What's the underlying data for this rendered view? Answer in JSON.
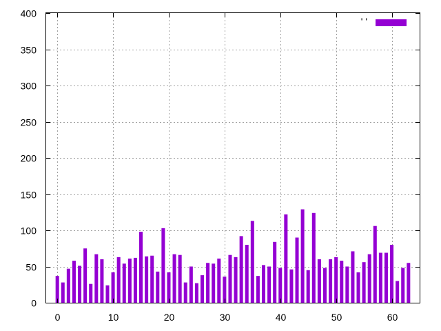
{
  "chart_data": {
    "type": "bar",
    "title": "",
    "xlabel": "",
    "ylabel": "",
    "x": [
      0,
      1,
      2,
      3,
      4,
      5,
      6,
      7,
      8,
      9,
      10,
      11,
      12,
      13,
      14,
      15,
      16,
      17,
      18,
      19,
      20,
      21,
      22,
      23,
      24,
      25,
      26,
      27,
      28,
      29,
      30,
      31,
      32,
      33,
      34,
      35,
      36,
      37,
      38,
      39,
      40,
      41,
      42,
      43,
      44,
      45,
      46,
      47,
      48,
      49,
      50,
      51,
      52,
      53,
      54,
      55,
      56,
      57,
      58,
      59,
      60,
      61,
      62,
      63
    ],
    "series": [
      {
        "name": "' '",
        "color": "#9400d3",
        "values": [
          37,
          28,
          47,
          58,
          51,
          75,
          26,
          67,
          60,
          24,
          42,
          63,
          54,
          61,
          62,
          98,
          64,
          65,
          43,
          103,
          42,
          67,
          66,
          28,
          50,
          27,
          38,
          55,
          54,
          61,
          36,
          66,
          63,
          92,
          80,
          113,
          37,
          52,
          50,
          84,
          48,
          122,
          46,
          90,
          129,
          45,
          124,
          60,
          48,
          60,
          63,
          58,
          50,
          71,
          42,
          56,
          67,
          106,
          69,
          69,
          80,
          30,
          48,
          55
        ]
      }
    ],
    "ylim": [
      0,
      400
    ],
    "xlim": [
      -2,
      65
    ],
    "yticks": [
      0,
      50,
      100,
      150,
      200,
      250,
      300,
      350,
      400
    ],
    "xticks": [
      0,
      10,
      20,
      30,
      40,
      50,
      60
    ],
    "grid": true,
    "legend_position": "top-right"
  }
}
